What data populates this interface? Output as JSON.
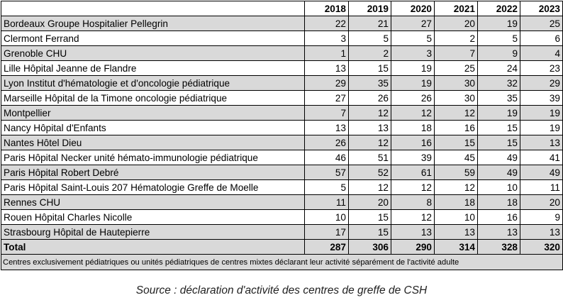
{
  "table": {
    "corner_label": "",
    "years": [
      "2018",
      "2019",
      "2020",
      "2021",
      "2022",
      "2023"
    ],
    "rows": [
      {
        "center": "Bordeaux Groupe Hospitalier Pellegrin",
        "values": [
          "22",
          "21",
          "27",
          "20",
          "19",
          "25"
        ]
      },
      {
        "center": "Clermont Ferrand",
        "values": [
          "3",
          "5",
          "5",
          "2",
          "5",
          "6"
        ]
      },
      {
        "center": "Grenoble CHU",
        "values": [
          "1",
          "2",
          "3",
          "7",
          "9",
          "4"
        ]
      },
      {
        "center": "Lille Hôpital Jeanne de Flandre",
        "values": [
          "13",
          "15",
          "19",
          "25",
          "24",
          "23"
        ]
      },
      {
        "center": "Lyon Institut d'hématologie et d'oncologie pédiatrique",
        "values": [
          "29",
          "35",
          "19",
          "30",
          "32",
          "29"
        ]
      },
      {
        "center": "Marseille Hôpital de la Timone oncologie pédiatrique",
        "values": [
          "27",
          "26",
          "26",
          "30",
          "35",
          "39"
        ]
      },
      {
        "center": "Montpellier",
        "values": [
          "7",
          "12",
          "12",
          "12",
          "19",
          "19"
        ]
      },
      {
        "center": "Nancy Hôpital d'Enfants",
        "values": [
          "13",
          "13",
          "18",
          "16",
          "15",
          "19"
        ]
      },
      {
        "center": "Nantes Hôtel Dieu",
        "values": [
          "26",
          "12",
          "16",
          "15",
          "15",
          "13"
        ]
      },
      {
        "center": "Paris Hôpital Necker unité hémato-immunologie pédiatrique",
        "values": [
          "46",
          "51",
          "39",
          "45",
          "49",
          "41"
        ]
      },
      {
        "center": "Paris Hôpital Robert Debré",
        "values": [
          "57",
          "52",
          "61",
          "59",
          "49",
          "49"
        ]
      },
      {
        "center": "Paris Hôpital Saint-Louis 207 Hématologie Greffe de Moelle",
        "values": [
          "5",
          "12",
          "12",
          "12",
          "10",
          "11"
        ]
      },
      {
        "center": "Rennes CHU",
        "values": [
          "11",
          "20",
          "8",
          "18",
          "18",
          "20"
        ]
      },
      {
        "center": "Rouen Hôpital Charles Nicolle",
        "values": [
          "10",
          "15",
          "12",
          "10",
          "16",
          "9"
        ]
      },
      {
        "center": "Strasbourg Hôpital de Hautepierre",
        "values": [
          "17",
          "15",
          "13",
          "13",
          "13",
          "13"
        ]
      }
    ],
    "total": {
      "label": "Total",
      "values": [
        "287",
        "306",
        "290",
        "314",
        "328",
        "320"
      ]
    },
    "footnote": "Centres exclusivement pédiatriques ou unités pédiatriques de centres mixtes déclarant leur activité séparément de l'activité adulte"
  },
  "source": "Source : déclaration d'activité des centres de greffe de CSH"
}
